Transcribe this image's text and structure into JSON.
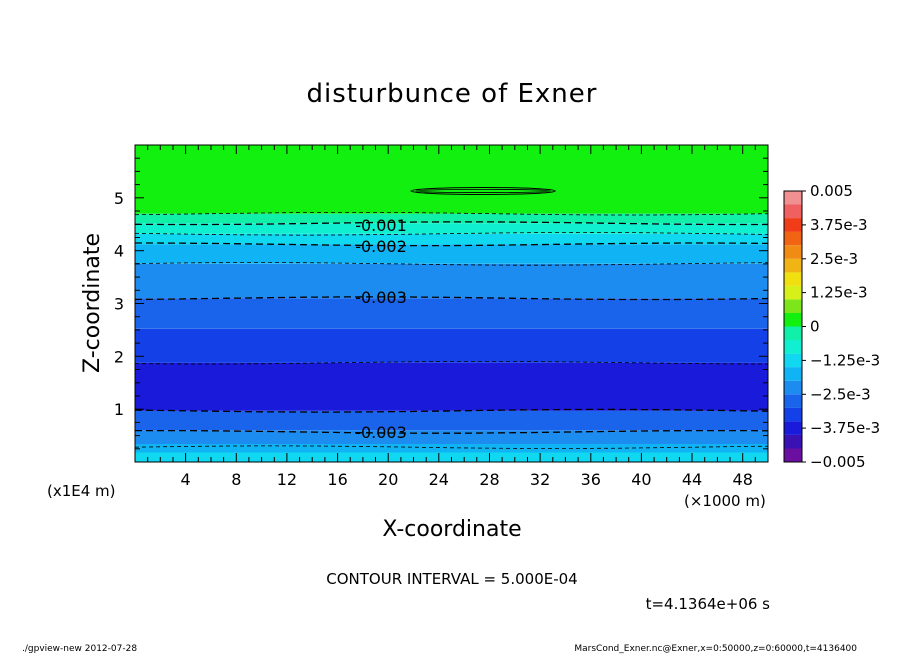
{
  "chart_data": {
    "type": "contour",
    "title": "disturbunce of Exner",
    "xlabel": "X-coordinate",
    "ylabel": "Z-coordinate",
    "x_unit": "(×1000 m)",
    "y_unit": "(x1E4 m)",
    "xlim": [
      0,
      50
    ],
    "ylim": [
      0,
      6
    ],
    "x_ticks": [
      "4",
      "8",
      "12",
      "16",
      "20",
      "24",
      "28",
      "32",
      "36",
      "40",
      "44",
      "48"
    ],
    "y_ticks": [
      "1",
      "2",
      "3",
      "4",
      "5"
    ],
    "colorbar_labels": [
      "0.005",
      "3.75e-3",
      "2.5e-3",
      "1.25e-3",
      "0",
      "-1.25e-3",
      "-2.5e-3",
      "-3.75e-3",
      "-0.005"
    ],
    "contour_labels": [
      "-0.001",
      "-0.002",
      "-0.003",
      "-0.003"
    ],
    "level_colors": {
      "-0.0050": "#6a0fa0",
      "-0.0045": "#3a12b4",
      "-0.0040": "#1a1ada",
      "-0.0035": "#1440e8",
      "-0.0030": "#1a64ec",
      "-0.0025": "#1c8cf0",
      "-0.0020": "#10b4f4",
      "-0.0015": "#10d8f0",
      "-0.0010": "#10f0d0",
      "-0.0005": "#10f0a8",
      "0.0000": "#12f010",
      "0.0005": "#7de61a",
      "0.0010": "#d8f01a",
      "0.0015": "#f0e010",
      "0.0020": "#f0b414",
      "0.0025": "#f08c14",
      "0.0030": "#f06414",
      "0.0035": "#f03c18",
      "0.0040": "#f06060",
      "0.0045": "#f09090"
    },
    "bands": [
      {
        "z_bottom": 0.0,
        "z_top": 0.18,
        "color": "#10d8f0"
      },
      {
        "z_bottom": 0.18,
        "z_top": 0.34,
        "color": "#10b4f4"
      },
      {
        "z_bottom": 0.34,
        "z_top": 0.6,
        "color": "#1c8cf0"
      },
      {
        "z_bottom": 0.6,
        "z_top": 0.97,
        "color": "#1a64ec"
      },
      {
        "z_bottom": 0.97,
        "z_top": 1.88,
        "color": "#1a1ada"
      },
      {
        "z_bottom": 1.88,
        "z_top": 2.52,
        "color": "#1440e8"
      },
      {
        "z_bottom": 2.52,
        "z_top": 3.1,
        "color": "#1a64ec"
      },
      {
        "z_bottom": 3.1,
        "z_top": 3.75,
        "color": "#1c8cf0"
      },
      {
        "z_bottom": 3.75,
        "z_top": 4.12,
        "color": "#10b4f4"
      },
      {
        "z_bottom": 4.12,
        "z_top": 4.32,
        "color": "#10d8f0"
      },
      {
        "z_bottom": 4.32,
        "z_top": 4.52,
        "color": "#10f0d0"
      },
      {
        "z_bottom": 4.52,
        "z_top": 4.7,
        "color": "#10f0a8"
      },
      {
        "z_bottom": 4.7,
        "z_top": 6.0,
        "color": "#12f010"
      }
    ],
    "contours": [
      {
        "z": 0.28,
        "style": "thin"
      },
      {
        "z": 0.57,
        "style": "thick"
      },
      {
        "z": 0.97,
        "style": "thick"
      },
      {
        "z": 1.88,
        "style": "thin"
      },
      {
        "z": 3.1,
        "style": "thick"
      },
      {
        "z": 3.75,
        "style": "thin"
      },
      {
        "z": 4.12,
        "style": "thick"
      },
      {
        "z": 4.32,
        "style": "thin"
      },
      {
        "z": 4.52,
        "style": "thick"
      },
      {
        "z": 4.7,
        "style": "thin"
      }
    ]
  },
  "contour_interval_text": "CONTOUR INTERVAL = 5.000E-04",
  "time_text": "t=4.1364e+06 s",
  "footer_left": "./gpview-new  2012-07-28",
  "footer_right": "MarsCond_Exner.nc@Exner,x=0:50000,z=0:60000,t=4136400"
}
